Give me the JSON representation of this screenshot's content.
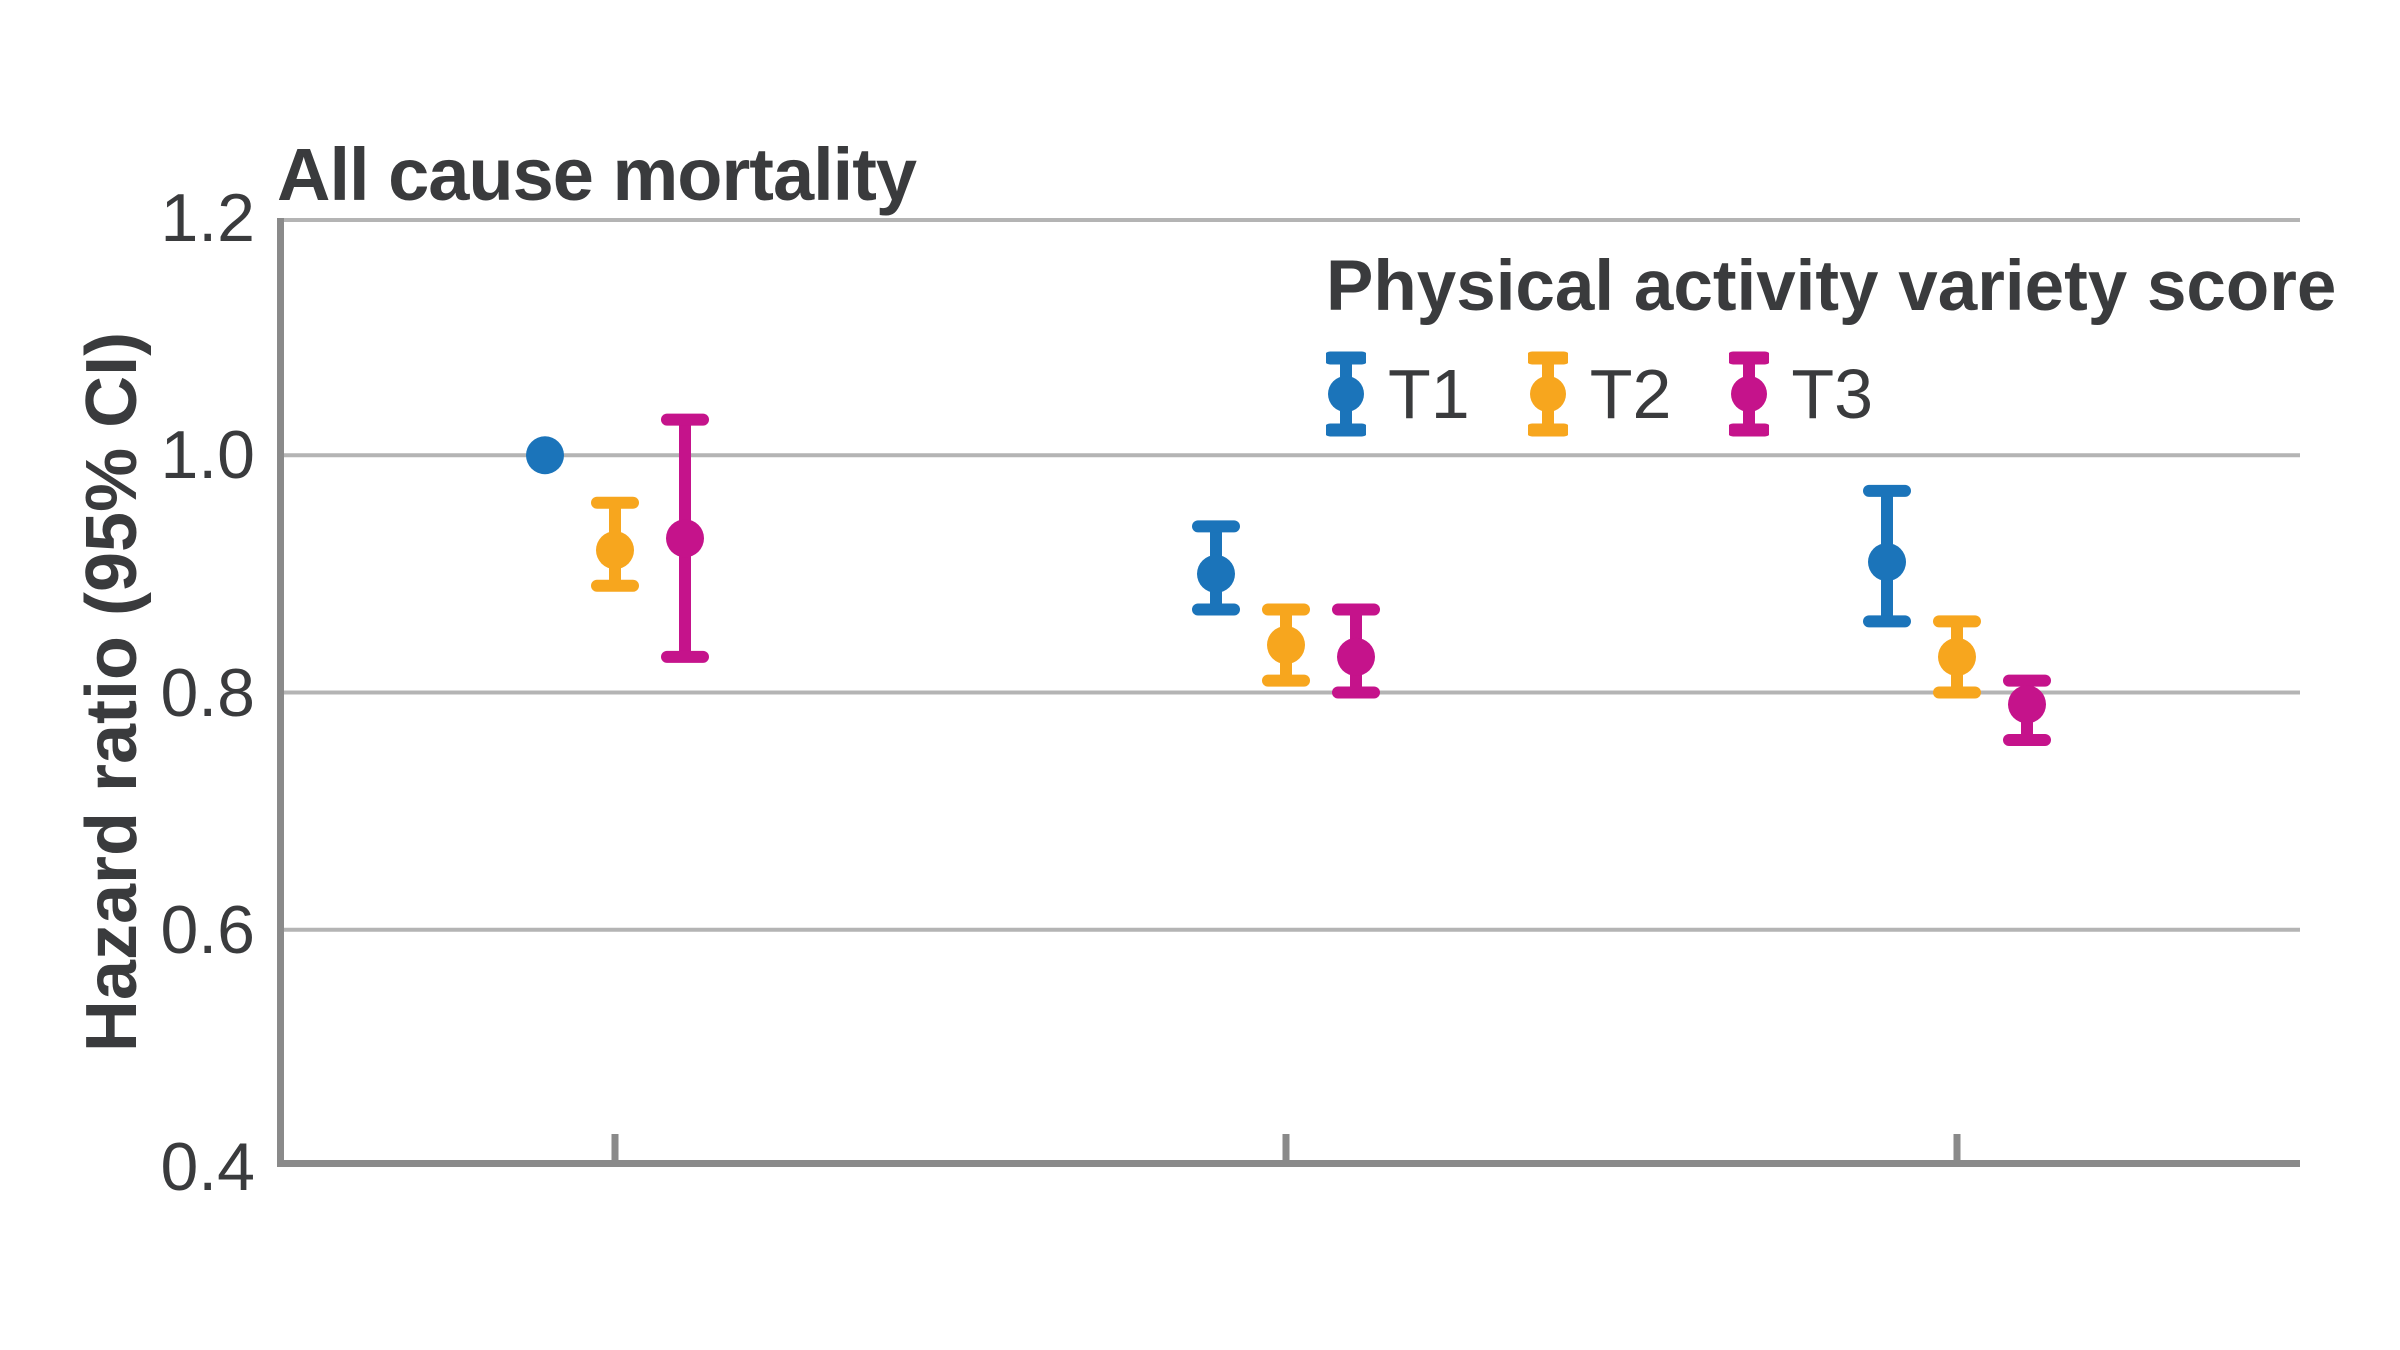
{
  "chart": {
    "title": "All cause mortality",
    "y_axis": {
      "label": "Hazard ratio (95% CI)",
      "tick_labels": [
        "1.2",
        "1.0",
        "0.8",
        "0.6",
        "0.4"
      ]
    },
    "legend": {
      "title": "Physical activity variety score",
      "items": [
        {
          "label": "T1",
          "color": "#1b74ba"
        },
        {
          "label": "T2",
          "color": "#f7a61e"
        },
        {
          "label": "T3",
          "color": "#c5138b"
        }
      ]
    }
  },
  "colors": {
    "text": "#3a3b3d",
    "gridline": "#b4b4b4",
    "axis": "#8a8a8a",
    "background": "#ffffff",
    "series_blue": "#1b74ba",
    "series_yellow": "#f7a61e",
    "series_magenta": "#c5138b"
  },
  "chart_data": {
    "type": "scatter",
    "subtype": "errorbar-forest",
    "title": "All cause mortality",
    "xlabel": "",
    "ylabel": "Hazard ratio (95% CI)",
    "ylim": [
      0.4,
      1.2
    ],
    "yticks": [
      1.2,
      1.0,
      0.8,
      0.6,
      0.4
    ],
    "grid": "horizontal-only",
    "legend_title": "Physical activity variety score",
    "legend_position": "top-right-inside",
    "x_groups": 3,
    "x_tick_labels": [
      "",
      "",
      ""
    ],
    "series": [
      {
        "name": "T1",
        "color": "#1b74ba",
        "points": [
          {
            "group": 1,
            "hr": 1.0,
            "ci_low": null,
            "ci_high": null
          },
          {
            "group": 2,
            "hr": 0.9,
            "ci_low": 0.87,
            "ci_high": 0.94
          },
          {
            "group": 3,
            "hr": 0.91,
            "ci_low": 0.86,
            "ci_high": 0.97
          }
        ]
      },
      {
        "name": "T2",
        "color": "#f7a61e",
        "points": [
          {
            "group": 1,
            "hr": 0.92,
            "ci_low": 0.89,
            "ci_high": 0.96
          },
          {
            "group": 2,
            "hr": 0.84,
            "ci_low": 0.81,
            "ci_high": 0.87
          },
          {
            "group": 3,
            "hr": 0.83,
            "ci_low": 0.8,
            "ci_high": 0.86
          }
        ]
      },
      {
        "name": "T3",
        "color": "#c5138b",
        "points": [
          {
            "group": 1,
            "hr": 0.93,
            "ci_low": 0.83,
            "ci_high": 1.03
          },
          {
            "group": 2,
            "hr": 0.83,
            "ci_low": 0.8,
            "ci_high": 0.87
          },
          {
            "group": 3,
            "hr": 0.79,
            "ci_low": 0.76,
            "ci_high": 0.81
          }
        ]
      }
    ]
  }
}
